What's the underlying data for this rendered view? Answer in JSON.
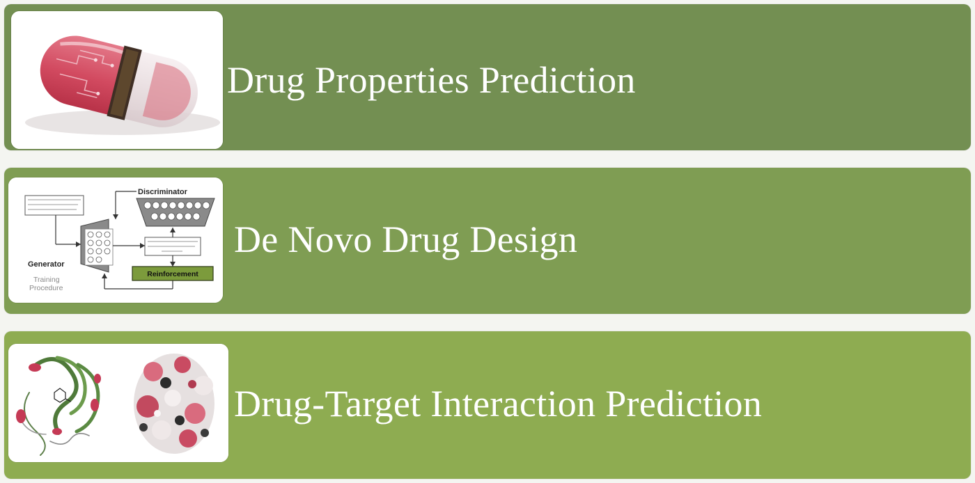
{
  "rows": [
    {
      "label": "Drug Properties Prediction",
      "image": "pill-capsule-circuit-icon"
    },
    {
      "label": "De Novo Drug Design",
      "image": "gan-diagram-icon",
      "diagram": {
        "discriminator": "Discriminator",
        "generator": "Generator",
        "reinforcement": "Reinforcement",
        "training_line1": "Training",
        "training_line2": "Procedure"
      }
    },
    {
      "label": "Drug-Target Interaction Prediction",
      "image": "protein-structures-icon"
    }
  ],
  "colors": {
    "band1": "#738f52",
    "band2": "#7f9d53",
    "band3": "#8eac51",
    "page_background": "#f4f5f1",
    "label_text": "#ffffff"
  }
}
